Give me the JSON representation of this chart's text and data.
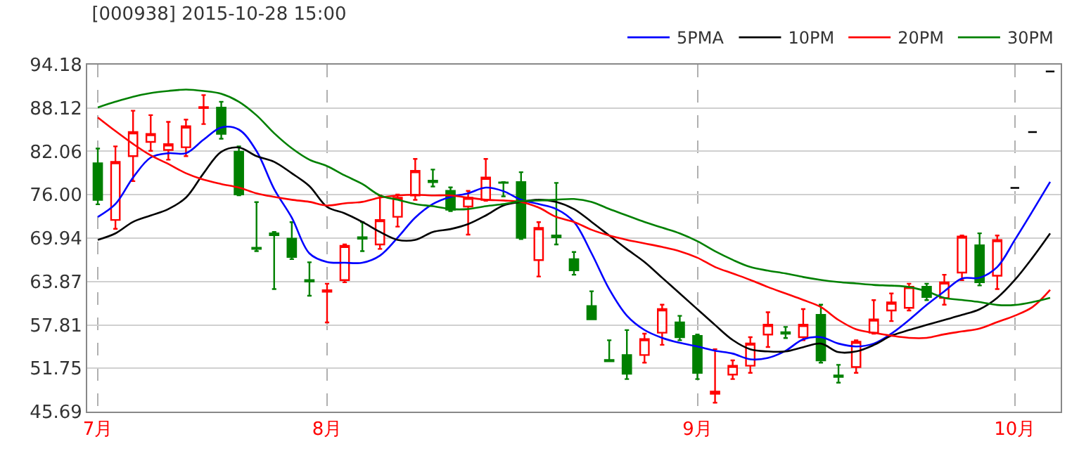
{
  "chart_data": {
    "type": "candlestick",
    "title": "[000938] 2015-10-28 15:00",
    "categories": [
      "7月",
      null,
      null,
      null,
      null,
      null,
      null,
      null,
      null,
      null,
      null,
      null,
      null,
      "8月",
      null,
      null,
      null,
      null,
      null,
      null,
      null,
      null,
      null,
      null,
      null,
      null,
      null,
      null,
      null,
      null,
      null,
      null,
      null,
      null,
      "9月",
      null,
      null,
      null,
      null,
      null,
      null,
      null,
      null,
      null,
      null,
      null,
      null,
      null,
      null,
      null,
      null,
      null,
      "10月",
      null,
      null
    ],
    "ohlc": [
      [
        80.39,
        82.45,
        74.66,
        75.28
      ],
      [
        72.48,
        82.76,
        71.23,
        80.58
      ],
      [
        81.39,
        87.74,
        77.9,
        84.75
      ],
      [
        83.38,
        87.12,
        82.13,
        84.5
      ],
      [
        82.26,
        86.18,
        80.89,
        83.07
      ],
      [
        82.63,
        86.5,
        81.39,
        85.56
      ],
      [
        88.12,
        89.92,
        85.87,
        88.24
      ],
      [
        88.18,
        88.99,
        83.82,
        84.5
      ],
      [
        82.01,
        82.76,
        75.91,
        76.03
      ],
      [
        68.6,
        74.97,
        68.12,
        68.43
      ],
      [
        70.61,
        70.8,
        62.82,
        70.36
      ],
      [
        69.86,
        72.17,
        67.0,
        67.31
      ],
      [
        64.07,
        66.56,
        61.89,
        63.88
      ],
      [
        62.45,
        63.57,
        58.15,
        62.64
      ],
      [
        64.07,
        69.05,
        63.76,
        68.87
      ],
      [
        70.05,
        72.17,
        68.12,
        69.86
      ],
      [
        69.05,
        75.9,
        68.43,
        72.48
      ],
      [
        72.92,
        76.03,
        71.54,
        75.59
      ],
      [
        75.9,
        81.01,
        75.28,
        79.33
      ],
      [
        77.96,
        79.52,
        77.15,
        77.77
      ],
      [
        76.53,
        77.03,
        73.72,
        73.91
      ],
      [
        74.35,
        76.53,
        70.42,
        75.59
      ],
      [
        75.28,
        81.01,
        75.16,
        78.4
      ],
      [
        77.71,
        77.77,
        75.78,
        77.65
      ],
      [
        77.77,
        79.15,
        69.8,
        69.99
      ],
      [
        66.87,
        72.17,
        64.57,
        71.36
      ],
      [
        70.3,
        77.65,
        69.05,
        70.05
      ],
      [
        67.0,
        67.99,
        64.82,
        65.44
      ],
      [
        60.45,
        62.51,
        58.59,
        58.59
      ],
      [
        52.91,
        55.66,
        52.73,
        52.73
      ],
      [
        53.6,
        57.09,
        50.24,
        50.99
      ],
      [
        53.6,
        56.59,
        52.54,
        55.84
      ],
      [
        56.72,
        60.64,
        55.03,
        60.02
      ],
      [
        58.15,
        59.08,
        55.66,
        56.1
      ],
      [
        56.28,
        56.47,
        50.24,
        51.11
      ],
      [
        48.18,
        54.41,
        46.94,
        48.49
      ],
      [
        50.86,
        52.85,
        50.24,
        52.11
      ],
      [
        52.11,
        56.09,
        51.11,
        55.22
      ],
      [
        56.47,
        59.58,
        54.72,
        57.84
      ],
      [
        56.78,
        57.53,
        55.97,
        56.59
      ],
      [
        56.09,
        60.02,
        55.66,
        57.84
      ],
      [
        59.21,
        60.64,
        52.54,
        52.85
      ],
      [
        50.74,
        52.23,
        49.74,
        50.55
      ],
      [
        51.92,
        55.66,
        51.11,
        55.47
      ],
      [
        56.72,
        61.27,
        56.59,
        58.59
      ],
      [
        59.83,
        62.2,
        58.34,
        60.95
      ],
      [
        60.2,
        63.57,
        59.83,
        63.13
      ],
      [
        63.13,
        63.57,
        61.27,
        61.7
      ],
      [
        61.58,
        64.82,
        60.64,
        63.76
      ],
      [
        65.13,
        70.3,
        64.07,
        70.17
      ],
      [
        68.93,
        70.61,
        63.32,
        63.76
      ],
      [
        64.69,
        70.3,
        62.82,
        69.68
      ],
      [
        76.96,
        76.96,
        76.96,
        76.96
      ],
      [
        84.75,
        84.75,
        84.75,
        84.75
      ],
      [
        93.22,
        93.22,
        93.22,
        93.22
      ]
    ],
    "colors": [
      "#008000",
      "#ff0000",
      "#ff0000",
      "#ff0000",
      "#ff0000",
      "#ff0000",
      "#ff0000",
      "#008000",
      "#008000",
      "#008000",
      "#008000",
      "#008000",
      "#008000",
      "#ff0000",
      "#ff0000",
      "#008000",
      "#ff0000",
      "#ff0000",
      "#ff0000",
      "#008000",
      "#008000",
      "#ff0000",
      "#ff0000",
      "#008000",
      "#008000",
      "#ff0000",
      "#008000",
      "#008000",
      "#008000",
      "#008000",
      "#008000",
      "#ff0000",
      "#ff0000",
      "#008000",
      "#008000",
      "#ff0000",
      "#ff0000",
      "#ff0000",
      "#ff0000",
      "#008000",
      "#ff0000",
      "#008000",
      "#008000",
      "#ff0000",
      "#ff0000",
      "#ff0000",
      "#ff0000",
      "#008000",
      "#ff0000",
      "#ff0000",
      "#008000",
      "#ff0000",
      "#000000",
      "#000000",
      "#000000"
    ],
    "series": [
      {
        "name": "5PMA",
        "type": "line",
        "color": "#0000ff",
        "values": [
          72.9,
          74.7,
          78.4,
          81.2,
          81.8,
          81.8,
          83.7,
          85.4,
          85.1,
          82.1,
          76.8,
          72.8,
          67.8,
          66.6,
          66.5,
          66.5,
          67.5,
          70.0,
          72.8,
          74.7,
          75.7,
          76.2,
          77.0,
          76.5,
          75.3,
          74.7,
          74.0,
          72.2,
          67.8,
          62.8,
          59.1,
          57.1,
          56.0,
          55.3,
          54.8,
          54.2,
          53.8,
          53.0,
          53.2,
          54.2,
          55.8,
          56.1,
          55.2,
          54.8,
          55.2,
          56.6,
          58.5,
          60.6,
          62.5,
          64.3,
          64.4,
          65.9,
          69.7,
          73.7,
          77.8
        ]
      },
      {
        "name": "10PM",
        "type": "line",
        "color": "#000000",
        "values": [
          69.7,
          70.6,
          72.2,
          73.1,
          74.0,
          75.6,
          79.0,
          82.0,
          82.6,
          81.4,
          80.6,
          79.0,
          77.2,
          74.3,
          73.4,
          72.2,
          70.8,
          69.7,
          69.7,
          70.8,
          71.2,
          71.9,
          73.1,
          74.5,
          75.0,
          75.3,
          75.0,
          74.0,
          72.2,
          70.3,
          68.4,
          66.6,
          64.4,
          62.2,
          60.0,
          57.8,
          55.7,
          54.4,
          54.1,
          54.1,
          54.7,
          55.2,
          54.0,
          54.1,
          55.0,
          56.3,
          57.1,
          57.8,
          58.5,
          59.2,
          60.0,
          61.6,
          64.1,
          67.2,
          70.6
        ]
      },
      {
        "name": "20PM",
        "type": "line",
        "color": "#ff0000",
        "values": [
          86.8,
          84.9,
          83.1,
          81.5,
          80.3,
          79.0,
          78.1,
          77.5,
          77.0,
          76.2,
          75.7,
          75.3,
          75.0,
          74.5,
          74.8,
          75.0,
          75.6,
          75.9,
          76.0,
          75.9,
          75.9,
          75.6,
          75.3,
          75.2,
          75.0,
          74.2,
          72.9,
          72.2,
          71.1,
          70.3,
          69.7,
          69.2,
          68.7,
          68.1,
          67.2,
          65.9,
          65.0,
          64.1,
          63.1,
          62.2,
          61.3,
          60.3,
          58.5,
          57.2,
          56.7,
          56.3,
          56.0,
          56.0,
          56.5,
          56.9,
          57.3,
          58.2,
          59.1,
          60.3,
          62.7
        ]
      },
      {
        "name": "30PM",
        "type": "line",
        "color": "#008000",
        "values": [
          88.2,
          89.0,
          89.7,
          90.2,
          90.5,
          90.7,
          90.5,
          90.1,
          89.0,
          87.1,
          84.6,
          82.5,
          80.9,
          80.0,
          78.7,
          77.5,
          75.9,
          75.3,
          74.7,
          74.4,
          74.0,
          74.0,
          74.4,
          74.7,
          75.1,
          75.2,
          75.3,
          75.4,
          75.0,
          74.0,
          73.1,
          72.2,
          71.4,
          70.6,
          69.5,
          68.1,
          66.9,
          65.9,
          65.4,
          65.0,
          64.5,
          64.1,
          63.8,
          63.6,
          63.4,
          63.3,
          63.1,
          62.5,
          61.6,
          61.3,
          61.0,
          60.6,
          60.6,
          61.0,
          61.6
        ]
      }
    ],
    "ylim": [
      45.69,
      94.18
    ],
    "yticks": [
      94.18,
      88.12,
      82.06,
      {
        "value": 76.0,
        "label": "76.00"
      },
      69.94,
      63.87,
      57.81,
      51.75,
      45.69
    ],
    "grid": true,
    "legend": "top right",
    "line_style": "solid",
    "marker": "none"
  }
}
